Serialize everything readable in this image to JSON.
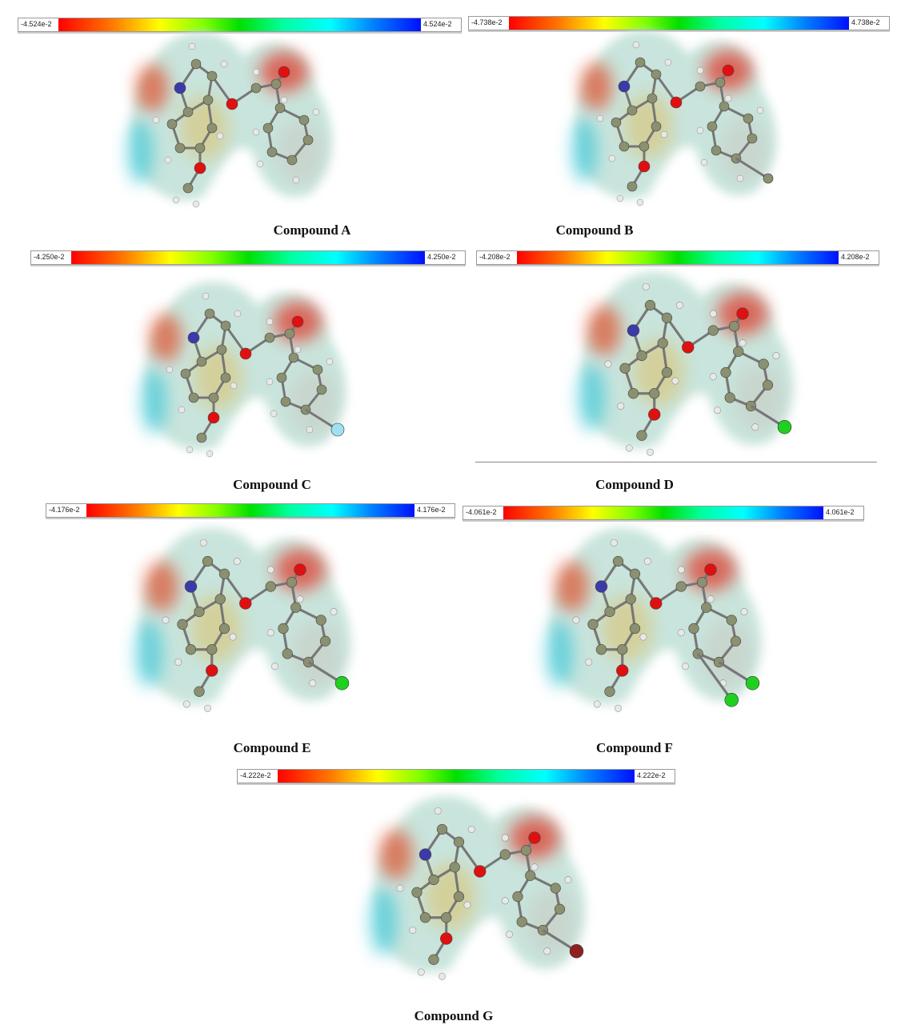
{
  "panels": [
    {
      "id": "a",
      "caption": "Compound A",
      "min": "-4.524e-2",
      "max": "4.524e-2",
      "substituents": []
    },
    {
      "id": "b",
      "caption": "Compound B",
      "min": "-4.738e-2",
      "max": "4.738e-2",
      "substituents": [
        "CH3"
      ]
    },
    {
      "id": "c",
      "caption": "Compound C",
      "min": "-4.250e-2",
      "max": "4.250e-2",
      "substituents": [
        "F"
      ]
    },
    {
      "id": "d",
      "caption": "Compound D",
      "min": "-4.208e-2",
      "max": "4.208e-2",
      "substituents": [
        "Cl"
      ]
    },
    {
      "id": "e",
      "caption": "Compound E",
      "min": "-4.176e-2",
      "max": "4.176e-2",
      "substituents": [
        "Cl"
      ]
    },
    {
      "id": "f",
      "caption": "Compound F",
      "min": "-4.061e-2",
      "max": "4.061e-2",
      "substituents": [
        "Cl",
        "Cl"
      ]
    },
    {
      "id": "g",
      "caption": "Compound G",
      "min": "-4.222e-2",
      "max": "4.222e-2",
      "substituents": [
        "Br"
      ]
    }
  ],
  "colors": {
    "negative": "#ff0000",
    "neutral": "#00e000",
    "positive": "#0010ff",
    "N": "#3a3aa8",
    "O": "#e01010",
    "C": "#8a9070",
    "H": "#e8e8e8",
    "F": "#a0e0f0",
    "Cl": "#20d020",
    "Br": "#902020"
  }
}
